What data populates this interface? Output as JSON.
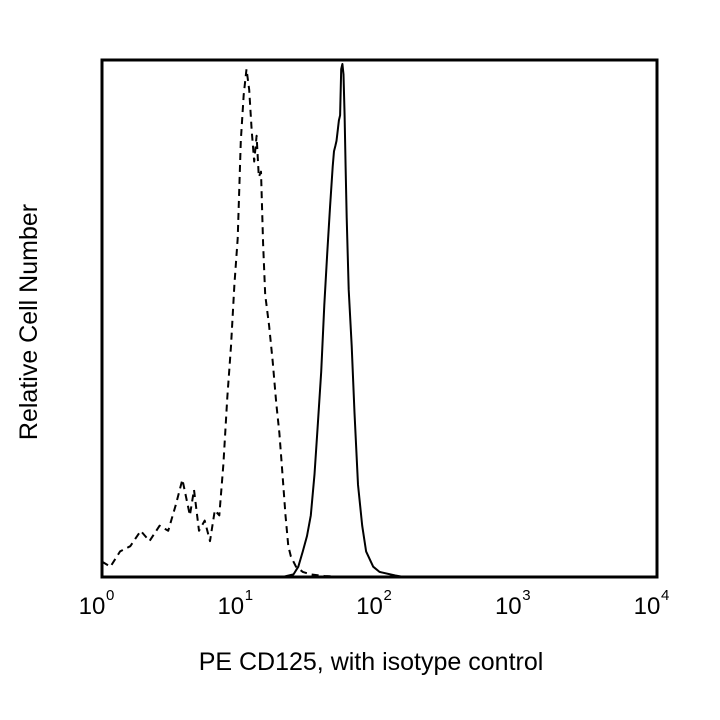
{
  "chart_data": {
    "type": "line",
    "title": "",
    "xlabel": "PE CD125, with isotype control",
    "ylabel": "Relative Cell Number",
    "xscale": "log",
    "xlim": [
      1,
      10000
    ],
    "ylim": [
      0,
      100
    ],
    "grid": false,
    "legend": "none",
    "x_ticks": [
      {
        "value": 1,
        "base": "10",
        "exp": "0"
      },
      {
        "value": 10,
        "base": "10",
        "exp": "1"
      },
      {
        "value": 100,
        "base": "10",
        "exp": "2"
      },
      {
        "value": 1000,
        "base": "10",
        "exp": "3"
      },
      {
        "value": 10000,
        "base": "10",
        "exp": "4"
      }
    ],
    "series": [
      {
        "style": "dashed",
        "color": "#000000",
        "x": [
          1.0,
          1.15,
          1.35,
          1.6,
          1.9,
          2.2,
          2.6,
          3.0,
          3.4,
          3.8,
          4.3,
          4.6,
          5.0,
          5.5,
          6.0,
          6.5,
          7.0,
          7.5,
          8.0,
          8.5,
          9.0,
          9.5,
          10.0,
          10.5,
          11.0,
          11.5,
          12.0,
          12.5,
          13.0,
          13.5,
          14.0,
          14.5,
          15.0,
          16.0,
          17.0,
          18.0,
          19.0,
          20.0,
          21.0,
          22.0,
          23.0,
          25.0,
          28.0,
          32.0,
          40.0,
          60.0
        ],
        "y": [
          3,
          2,
          5,
          6,
          9,
          7,
          10,
          9,
          14,
          19,
          12,
          17,
          9,
          11,
          7,
          13,
          12,
          22,
          35,
          45,
          57,
          66,
          85,
          94,
          99,
          95,
          87,
          81,
          86,
          78,
          79,
          65,
          55,
          49,
          42,
          34,
          28,
          20,
          12,
          6,
          4,
          2,
          1,
          0.5,
          0.2,
          0
        ]
      },
      {
        "style": "solid",
        "color": "#000000",
        "x": [
          20,
          24,
          26,
          28,
          30,
          32,
          34,
          36,
          38,
          40,
          42,
          44,
          46,
          47,
          48,
          49,
          50,
          51,
          52,
          53,
          54,
          55,
          56,
          57,
          58,
          60,
          63,
          66,
          70,
          75,
          80,
          90,
          100,
          130,
          150
        ],
        "y": [
          0,
          0.5,
          2,
          5,
          8,
          12,
          20,
          30,
          40,
          53,
          63,
          72,
          80,
          83,
          84,
          85,
          87,
          89,
          90,
          99,
          100,
          98,
          90,
          80,
          70,
          56,
          45,
          32,
          18,
          10,
          5,
          2,
          1,
          0.3,
          0
        ]
      }
    ]
  }
}
